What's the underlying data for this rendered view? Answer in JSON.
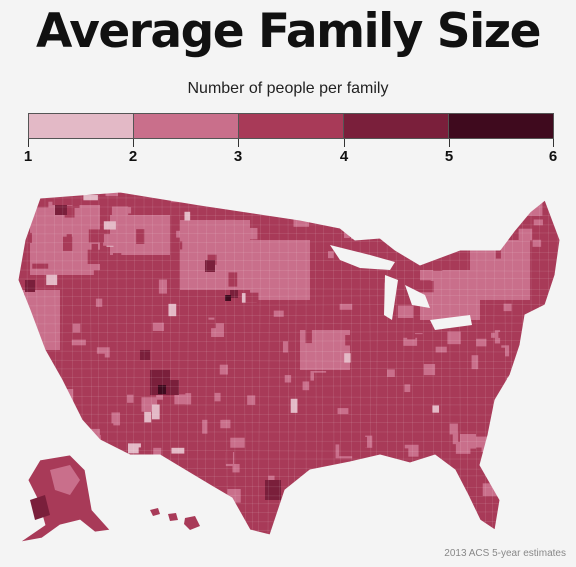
{
  "title": "Average Family Size",
  "legend": {
    "label": "Number of people per family",
    "ticks": [
      "1",
      "2",
      "3",
      "4",
      "5",
      "6"
    ],
    "colors": [
      "#e3b9c6",
      "#c96f8b",
      "#a83a58",
      "#7a1f3b",
      "#3f0a1e"
    ]
  },
  "map": {
    "regions": [
      "contiguous-us",
      "alaska",
      "hawaii"
    ],
    "base_color": "#a83a58",
    "light_color": "#c96f8b",
    "lightest_color": "#e3b9c6",
    "dark_color": "#7a1f3b",
    "darkest_color": "#3f0a1e",
    "lake_color": "#f4f4f4"
  },
  "source": "2013 ACS 5-year estimates"
}
